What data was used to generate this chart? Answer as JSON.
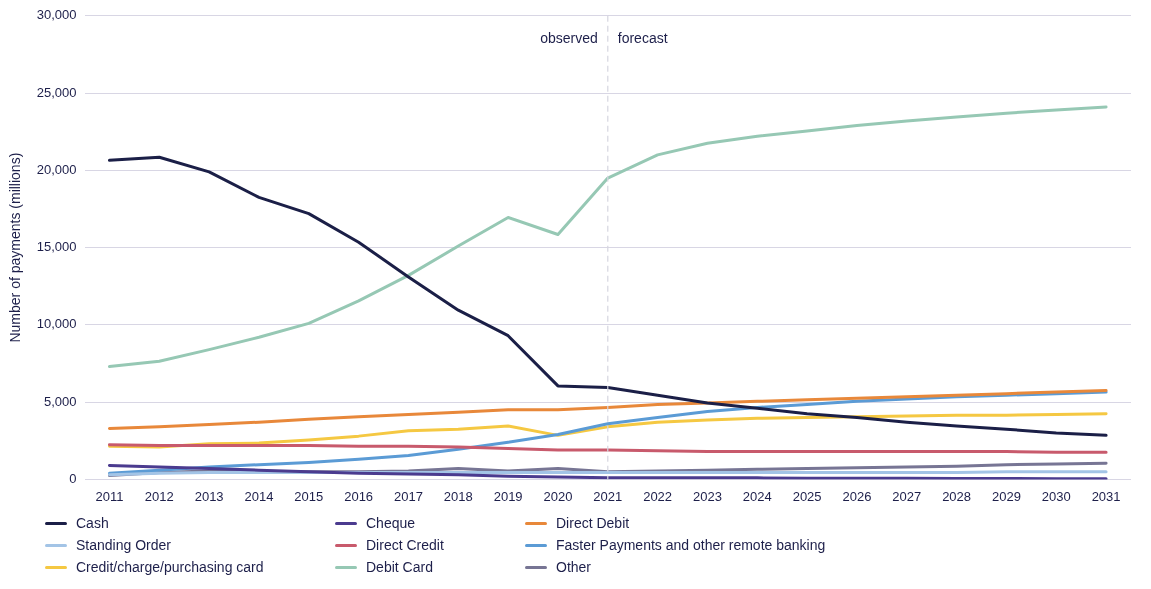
{
  "chart_data": {
    "type": "line",
    "ylabel": "Number of payments (millions)",
    "categories": [
      "2011",
      "2012",
      "2013",
      "2014",
      "2015",
      "2016",
      "2017",
      "2018",
      "2019",
      "2020",
      "2021",
      "2022",
      "2023",
      "2024",
      "2025",
      "2026",
      "2027",
      "2028",
      "2029",
      "2030",
      "2031"
    ],
    "ylim": [
      0,
      30000
    ],
    "yticks": [
      {
        "value": 0,
        "label": "0"
      },
      {
        "value": 5000,
        "label": "5,000"
      },
      {
        "value": 10000,
        "label": "10,000"
      },
      {
        "value": 15000,
        "label": "15,000"
      },
      {
        "value": 20000,
        "label": "20,000"
      },
      {
        "value": 25000,
        "label": "25,000"
      },
      {
        "value": 30000,
        "label": "30,000"
      }
    ],
    "grid": "y",
    "legend": "bottom",
    "marker": "none",
    "line_style": "solid",
    "ref_lines": [
      {
        "axis": "x",
        "value": "2021",
        "color": "#d6d6e0",
        "line_style": "dashed"
      }
    ],
    "annotations": [
      {
        "text": "observed",
        "x": "2021",
        "y": 28500
      },
      {
        "text": "forecast",
        "x": "2021",
        "y": 28500
      }
    ],
    "series": [
      {
        "name": "Cash",
        "color": "#1b1f47",
        "values": [
          20650,
          20850,
          19900,
          18250,
          17200,
          15350,
          13100,
          10950,
          9300,
          6050,
          5950,
          5450,
          4950,
          4600,
          4250,
          4000,
          3700,
          3450,
          3250,
          3000,
          2850
        ]
      },
      {
        "name": "Cheque",
        "color": "#4b3b8f",
        "values": [
          900,
          800,
          700,
          600,
          500,
          400,
          350,
          300,
          200,
          150,
          100,
          100,
          100,
          100,
          80,
          80,
          70,
          60,
          60,
          50,
          50
        ]
      },
      {
        "name": "Direct Debit",
        "color": "#e8883a",
        "values": [
          3300,
          3400,
          3550,
          3700,
          3900,
          4050,
          4200,
          4350,
          4500,
          4500,
          4650,
          4850,
          4950,
          5050,
          5150,
          5250,
          5350,
          5450,
          5550,
          5650,
          5750
        ]
      },
      {
        "name": "Standing Order",
        "color": "#a3c4e6",
        "values": [
          300,
          400,
          450,
          450,
          450,
          450,
          450,
          450,
          450,
          450,
          450,
          450,
          450,
          450,
          450,
          450,
          450,
          450,
          500,
          500,
          500
        ]
      },
      {
        "name": "Direct Credit",
        "color": "#c85a6c",
        "values": [
          2250,
          2200,
          2200,
          2200,
          2200,
          2150,
          2150,
          2100,
          2000,
          1900,
          1900,
          1850,
          1800,
          1800,
          1800,
          1800,
          1800,
          1800,
          1800,
          1750,
          1750
        ]
      },
      {
        "name": "Faster Payments and other remote banking",
        "color": "#5b9bd5",
        "values": [
          400,
          600,
          800,
          950,
          1100,
          1300,
          1550,
          1950,
          2400,
          2900,
          3600,
          4000,
          4400,
          4650,
          4850,
          5050,
          5200,
          5350,
          5450,
          5550,
          5650
        ]
      },
      {
        "name": "Credit/charge/purchasing card",
        "color": "#f5c842",
        "values": [
          2150,
          2100,
          2300,
          2350,
          2550,
          2800,
          3150,
          3250,
          3450,
          2850,
          3400,
          3700,
          3850,
          3950,
          4000,
          4050,
          4100,
          4150,
          4150,
          4200,
          4250
        ]
      },
      {
        "name": "Debit Card",
        "color": "#96c8b4",
        "values": [
          7300,
          7650,
          8400,
          9200,
          10100,
          11550,
          13200,
          15100,
          16950,
          15850,
          19500,
          21000,
          21750,
          22200,
          22550,
          22900,
          23200,
          23450,
          23700,
          23900,
          24100
        ]
      },
      {
        "name": "Other",
        "color": "#777594",
        "values": [
          250,
          450,
          550,
          500,
          500,
          500,
          550,
          700,
          550,
          700,
          500,
          550,
          600,
          650,
          700,
          750,
          800,
          850,
          950,
          1000,
          1050
        ]
      }
    ]
  }
}
